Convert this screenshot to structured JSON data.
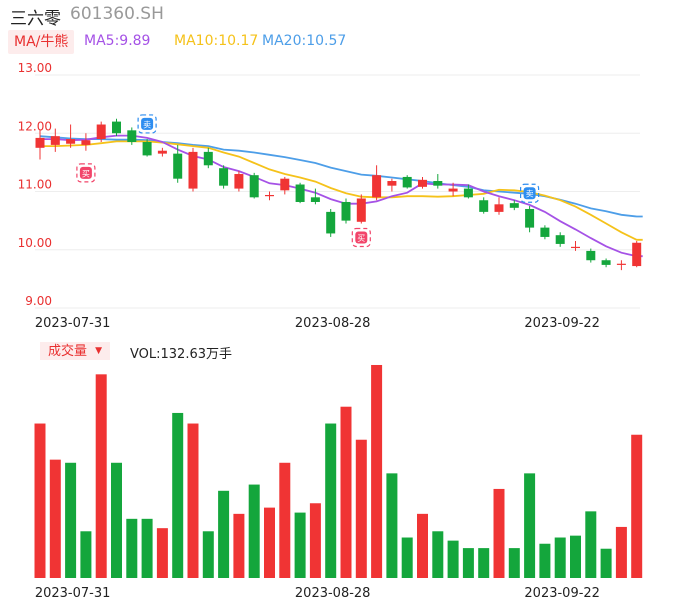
{
  "header": {
    "name": "三六零",
    "code": "601360.SH"
  },
  "legend": {
    "ma_toggle": "MA/牛熊",
    "ma5": "MA5:9.89",
    "ma10": "MA10:10.17",
    "ma20": "MA20:10.57"
  },
  "volume_panel": {
    "title": "成交量",
    "vol_text": "VOL:132.63万手"
  },
  "colors": {
    "up": "#f03434",
    "down": "#14a63c",
    "ma5": "#a552e6",
    "ma10": "#f5c21a",
    "ma20": "#4d9ee8",
    "grid": "#eeeeee",
    "axis_text": "#e93030"
  },
  "chart_data": [
    {
      "type": "candlestick",
      "ylim": [
        9.0,
        13.0
      ],
      "ytick_labels": [
        "13.00",
        "12.00",
        "11.00",
        "10.00",
        "9.00"
      ],
      "xtick_labels": [
        {
          "label": "2023-07-31",
          "index": 2
        },
        {
          "label": "2023-08-28",
          "index": 19
        },
        {
          "label": "2023-09-22",
          "index": 34
        }
      ],
      "markers": [
        {
          "type": "sell",
          "label": "卖",
          "index": 7,
          "price": 12.16
        },
        {
          "type": "buy",
          "label": "买",
          "index": 3,
          "price": 11.32
        },
        {
          "type": "buy",
          "label": "买",
          "index": 21,
          "price": 10.21
        },
        {
          "type": "sell",
          "label": "卖",
          "index": 32,
          "price": 10.97
        }
      ],
      "candles": [
        {
          "o": 11.75,
          "c": 11.92,
          "h": 12.05,
          "l": 11.55
        },
        {
          "o": 11.8,
          "c": 11.95,
          "h": 12.08,
          "l": 11.68
        },
        {
          "o": 11.82,
          "c": 11.9,
          "h": 12.15,
          "l": 11.75
        },
        {
          "o": 11.8,
          "c": 11.88,
          "h": 12.0,
          "l": 11.7
        },
        {
          "o": 11.9,
          "c": 12.15,
          "h": 12.2,
          "l": 11.85
        },
        {
          "o": 12.2,
          "c": 12.0,
          "h": 12.25,
          "l": 11.95
        },
        {
          "o": 12.05,
          "c": 11.85,
          "h": 12.1,
          "l": 11.8
        },
        {
          "o": 11.85,
          "c": 11.62,
          "h": 11.9,
          "l": 11.6
        },
        {
          "o": 11.65,
          "c": 11.7,
          "h": 11.75,
          "l": 11.6
        },
        {
          "o": 11.65,
          "c": 11.22,
          "h": 11.8,
          "l": 11.15
        },
        {
          "o": 11.05,
          "c": 11.68,
          "h": 11.75,
          "l": 11.0
        },
        {
          "o": 11.68,
          "c": 11.45,
          "h": 11.75,
          "l": 11.4
        },
        {
          "o": 11.4,
          "c": 11.1,
          "h": 11.45,
          "l": 11.05
        },
        {
          "o": 11.05,
          "c": 11.3,
          "h": 11.35,
          "l": 11.0
        },
        {
          "o": 11.28,
          "c": 10.9,
          "h": 11.32,
          "l": 10.88
        },
        {
          "o": 10.92,
          "c": 10.94,
          "h": 11.0,
          "l": 10.85
        },
        {
          "o": 11.02,
          "c": 11.22,
          "h": 11.25,
          "l": 10.95
        },
        {
          "o": 11.12,
          "c": 10.82,
          "h": 11.15,
          "l": 10.8
        },
        {
          "o": 10.9,
          "c": 10.82,
          "h": 11.05,
          "l": 10.78
        },
        {
          "o": 10.65,
          "c": 10.28,
          "h": 10.7,
          "l": 10.22
        },
        {
          "o": 10.82,
          "c": 10.5,
          "h": 10.88,
          "l": 10.45
        },
        {
          "o": 10.48,
          "c": 10.88,
          "h": 10.95,
          "l": 10.45
        },
        {
          "o": 10.9,
          "c": 11.28,
          "h": 11.45,
          "l": 10.85
        },
        {
          "o": 11.1,
          "c": 11.18,
          "h": 11.22,
          "l": 11.0
        },
        {
          "o": 11.25,
          "c": 11.07,
          "h": 11.28,
          "l": 11.05
        },
        {
          "o": 11.08,
          "c": 11.2,
          "h": 11.25,
          "l": 11.05
        },
        {
          "o": 11.18,
          "c": 11.1,
          "h": 11.3,
          "l": 11.05
        },
        {
          "o": 11.0,
          "c": 11.05,
          "h": 11.15,
          "l": 10.92
        },
        {
          "o": 11.05,
          "c": 10.9,
          "h": 11.12,
          "l": 10.88
        },
        {
          "o": 10.85,
          "c": 10.65,
          "h": 10.9,
          "l": 10.62
        },
        {
          "o": 10.65,
          "c": 10.78,
          "h": 10.9,
          "l": 10.6
        },
        {
          "o": 10.8,
          "c": 10.72,
          "h": 10.85,
          "l": 10.68
        },
        {
          "o": 10.7,
          "c": 10.38,
          "h": 10.75,
          "l": 10.3
        },
        {
          "o": 10.38,
          "c": 10.22,
          "h": 10.42,
          "l": 10.18
        },
        {
          "o": 10.25,
          "c": 10.1,
          "h": 10.3,
          "l": 10.05
        },
        {
          "o": 10.05,
          "c": 10.05,
          "h": 10.15,
          "l": 9.98
        },
        {
          "o": 9.98,
          "c": 9.82,
          "h": 10.02,
          "l": 9.78
        },
        {
          "o": 9.82,
          "c": 9.74,
          "h": 9.85,
          "l": 9.7
        },
        {
          "o": 9.74,
          "c": 9.76,
          "h": 9.82,
          "l": 9.65
        },
        {
          "o": 9.72,
          "c": 10.12,
          "h": 10.15,
          "l": 9.7
        }
      ],
      "ma5": [
        11.9,
        11.9,
        11.88,
        11.89,
        11.93,
        11.96,
        11.96,
        11.92,
        11.85,
        11.72,
        11.61,
        11.55,
        11.42,
        11.35,
        11.25,
        11.14,
        11.11,
        11.05,
        10.98,
        10.87,
        10.79,
        10.79,
        10.83,
        10.92,
        10.98,
        11.14,
        11.12,
        11.12,
        11.11,
        11.0,
        10.92,
        10.85,
        10.77,
        10.65,
        10.49,
        10.35,
        10.2,
        10.06,
        9.95,
        9.89
      ],
      "ma10": [
        11.78,
        11.78,
        11.79,
        11.8,
        11.83,
        11.86,
        11.86,
        11.86,
        11.84,
        11.81,
        11.78,
        11.75,
        11.67,
        11.6,
        11.49,
        11.38,
        11.3,
        11.24,
        11.17,
        11.06,
        10.97,
        10.91,
        10.9,
        10.9,
        10.92,
        10.92,
        10.91,
        10.92,
        10.94,
        10.96,
        11.03,
        11.02,
        10.99,
        10.93,
        10.85,
        10.74,
        10.6,
        10.45,
        10.3,
        10.17
      ],
      "ma20": [
        11.95,
        11.93,
        11.91,
        11.9,
        11.9,
        11.89,
        11.89,
        11.88,
        11.85,
        11.83,
        11.8,
        11.78,
        11.72,
        11.7,
        11.67,
        11.63,
        11.59,
        11.54,
        11.49,
        11.41,
        11.35,
        11.29,
        11.27,
        11.24,
        11.21,
        11.18,
        11.14,
        11.11,
        11.08,
        11.02,
        11.0,
        10.98,
        10.96,
        10.92,
        10.86,
        10.79,
        10.71,
        10.66,
        10.6,
        10.57
      ]
    },
    {
      "type": "bar",
      "title": "成交量",
      "ylim": [
        0,
        350
      ],
      "xtick_labels": [
        {
          "label": "2023-07-31",
          "index": 2
        },
        {
          "label": "2023-08-28",
          "index": 19
        },
        {
          "label": "2023-09-22",
          "index": 34
        }
      ],
      "values": [
        248,
        190,
        185,
        75,
        327,
        185,
        95,
        95,
        80,
        265,
        248,
        75,
        140,
        103,
        150,
        113,
        185,
        105,
        120,
        248,
        275,
        222,
        342,
        168,
        65,
        103,
        75,
        60,
        48,
        48,
        143,
        48,
        168,
        55,
        65,
        68,
        107,
        47,
        82,
        230
      ],
      "colors": [
        "up",
        "up",
        "down",
        "down",
        "up",
        "down",
        "down",
        "down",
        "up",
        "down",
        "up",
        "down",
        "down",
        "up",
        "down",
        "up",
        "up",
        "down",
        "up",
        "down",
        "up",
        "up",
        "up",
        "down",
        "down",
        "up",
        "down",
        "down",
        "down",
        "down",
        "up",
        "down",
        "down",
        "down",
        "down",
        "down",
        "down",
        "down",
        "up",
        "up"
      ]
    }
  ]
}
